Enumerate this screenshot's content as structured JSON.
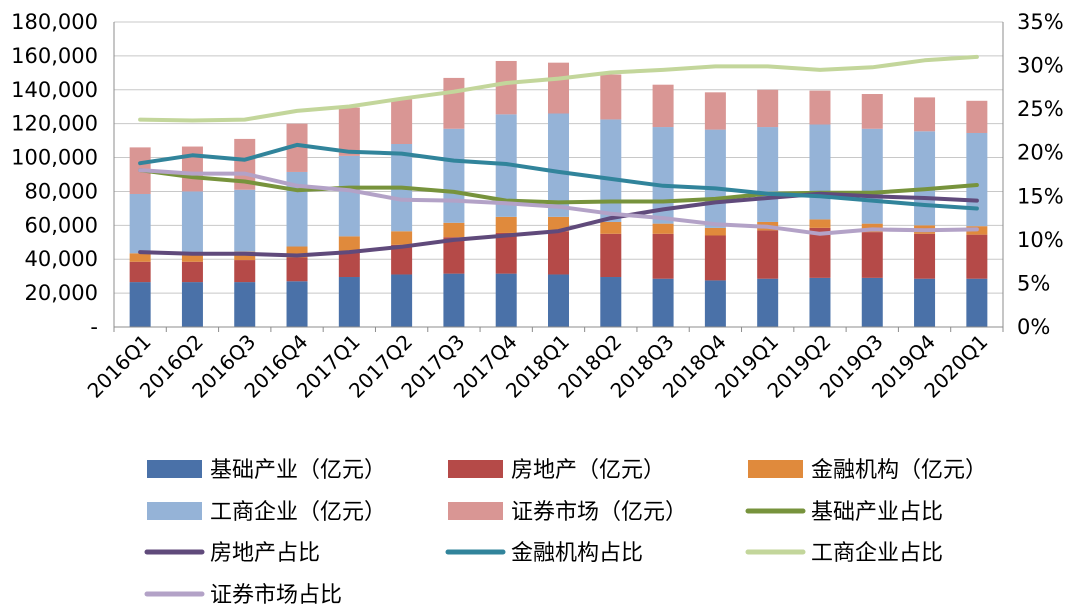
{
  "chart_data": {
    "type": "bar",
    "stacked": true,
    "title": "",
    "xlabel": "",
    "ylabel": "",
    "categories": [
      "2016Q1",
      "2016Q2",
      "2016Q3",
      "2016Q4",
      "2017Q1",
      "2017Q2",
      "2017Q3",
      "2017Q4",
      "2018Q1",
      "2018Q2",
      "2018Q3",
      "2018Q4",
      "2019Q1",
      "2019Q2",
      "2019Q3",
      "2019Q4",
      "2020Q1"
    ],
    "ylim": [
      0,
      180000
    ],
    "y_ticks": [
      "-",
      "20,000",
      "40,000",
      "60,000",
      "80,000",
      "100,000",
      "120,000",
      "140,000",
      "160,000",
      "180,000"
    ],
    "y2lim": [
      0,
      35
    ],
    "y2_ticks": [
      "0%",
      "5%",
      "10%",
      "15%",
      "20%",
      "25%",
      "30%",
      "35%"
    ],
    "grid": true,
    "legend_position": "bottom",
    "series": [
      {
        "name": "基础产业（亿元）",
        "kind": "bar",
        "color": "#4a71a8",
        "values": [
          26500,
          26500,
          26500,
          27000,
          29500,
          31000,
          31500,
          31500,
          31000,
          29500,
          28500,
          27500,
          28500,
          29000,
          29000,
          28500,
          28500
        ]
      },
      {
        "name": "房地产（亿元）",
        "kind": "bar",
        "color": "#b54a48",
        "values": [
          12000,
          12000,
          13000,
          14000,
          15000,
          17500,
          21500,
          24000,
          25500,
          25500,
          26500,
          26500,
          28500,
          29500,
          27000,
          26500,
          26000
        ]
      },
      {
        "name": "金融机构（亿元）",
        "kind": "bar",
        "color": "#e08a3c",
        "values": [
          5000,
          5000,
          5000,
          6500,
          9000,
          8000,
          8500,
          9500,
          8500,
          7000,
          6000,
          4500,
          5000,
          5000,
          5000,
          5000,
          5000
        ]
      },
      {
        "name": "工商企业（亿元）",
        "kind": "bar",
        "color": "#95b3d7",
        "values": [
          35000,
          36500,
          36500,
          44000,
          47500,
          51500,
          55500,
          60500,
          61000,
          60500,
          57000,
          58000,
          56000,
          56000,
          56000,
          55500,
          55000
        ]
      },
      {
        "name": "证券市场（亿元）",
        "kind": "bar",
        "color": "#d99694",
        "values": [
          27500,
          26500,
          30000,
          28500,
          28500,
          26500,
          30000,
          31500,
          30000,
          26500,
          25000,
          22000,
          22000,
          20000,
          20500,
          20000,
          19000
        ]
      },
      {
        "name": "基础产业占比",
        "kind": "line",
        "axis": "right",
        "color": "#77933c",
        "values": [
          18.0,
          17.2,
          16.7,
          15.7,
          16.0,
          16.0,
          15.5,
          14.5,
          14.3,
          14.4,
          14.4,
          14.7,
          15.3,
          15.4,
          15.4,
          15.8,
          16.3
        ]
      },
      {
        "name": "房地产占比",
        "kind": "line",
        "axis": "right",
        "color": "#604a7b",
        "values": [
          8.6,
          8.4,
          8.4,
          8.2,
          8.6,
          9.2,
          10.0,
          10.5,
          11.0,
          12.5,
          13.5,
          14.3,
          14.8,
          15.3,
          15.0,
          14.8,
          14.5
        ]
      },
      {
        "name": "金融机构占比",
        "kind": "line",
        "axis": "right",
        "color": "#31849b",
        "values": [
          18.8,
          19.7,
          19.2,
          20.9,
          20.1,
          19.9,
          19.1,
          18.7,
          17.8,
          17.0,
          16.2,
          15.9,
          15.3,
          15.0,
          14.5,
          14.0,
          13.6
        ]
      },
      {
        "name": "工商企业占比",
        "kind": "line",
        "axis": "right",
        "color": "#c3d69b",
        "values": [
          23.8,
          23.7,
          23.8,
          24.8,
          25.3,
          26.2,
          27.0,
          28.0,
          28.5,
          29.2,
          29.5,
          29.9,
          29.9,
          29.5,
          29.8,
          30.6,
          31.0
        ]
      },
      {
        "name": "证券市场占比",
        "kind": "line",
        "axis": "right",
        "color": "#b3a2c7",
        "values": [
          18.0,
          17.6,
          17.6,
          16.2,
          15.7,
          14.6,
          14.5,
          14.2,
          13.8,
          13.0,
          12.5,
          11.8,
          11.5,
          10.7,
          11.2,
          11.1,
          11.2
        ]
      }
    ]
  }
}
